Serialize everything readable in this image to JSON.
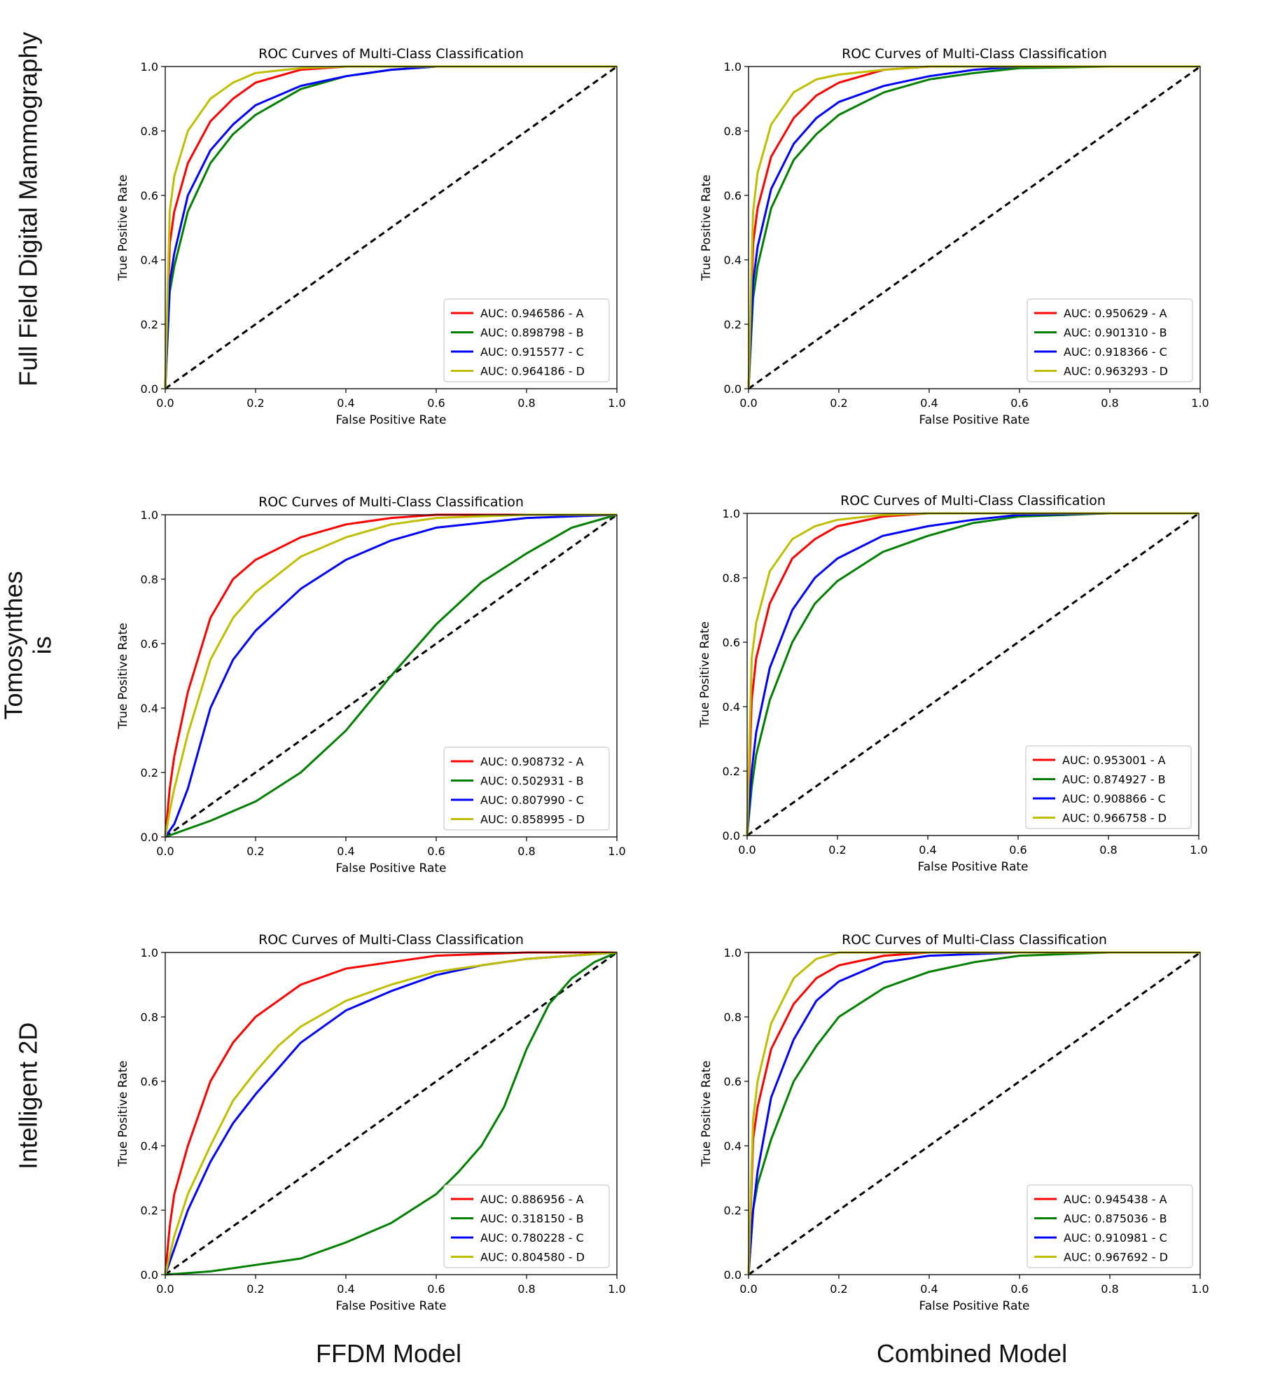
{
  "row_labels": [
    "Full Field Digital Mammography",
    "Tomosynthes is",
    "Intelligent 2D"
  ],
  "col_labels": [
    "FFDM Model",
    "Combined Model"
  ],
  "colors": {
    "A": "#ff0000",
    "B": "#008000",
    "C": "#0000ff",
    "D": "#bfbf00",
    "diag": "#000000"
  },
  "chart_data": [
    {
      "type": "line",
      "row": "Full Field Digital Mammography",
      "column": "FFDM Model",
      "title": "ROC Curves of Multi-Class Classification",
      "xlabel": "False Positive Rate",
      "ylabel": "True Positive Rate",
      "xlim": [
        0,
        1
      ],
      "ylim": [
        0,
        1
      ],
      "xticks": [
        "0.0",
        "0.2",
        "0.4",
        "0.6",
        "0.8",
        "1.0"
      ],
      "yticks": [
        "0.0",
        "0.2",
        "0.4",
        "0.6",
        "0.8",
        "1.0"
      ],
      "grid": false,
      "legend_position": "lower-right",
      "series": [
        {
          "name": "AUC: 0.946586 - A",
          "x": [
            0,
            0.01,
            0.02,
            0.05,
            0.1,
            0.15,
            0.2,
            0.3,
            0.4,
            0.6,
            1.0
          ],
          "y": [
            0,
            0.45,
            0.55,
            0.7,
            0.83,
            0.9,
            0.95,
            0.99,
            1.0,
            1.0,
            1.0
          ]
        },
        {
          "name": "AUC: 0.898798 - B",
          "x": [
            0,
            0.01,
            0.02,
            0.05,
            0.1,
            0.15,
            0.2,
            0.3,
            0.4,
            0.5,
            0.6,
            0.8,
            1.0
          ],
          "y": [
            0,
            0.3,
            0.38,
            0.55,
            0.7,
            0.79,
            0.85,
            0.93,
            0.97,
            0.99,
            1.0,
            1.0,
            1.0
          ]
        },
        {
          "name": "AUC: 0.915577 - C",
          "x": [
            0,
            0.01,
            0.02,
            0.05,
            0.1,
            0.15,
            0.2,
            0.3,
            0.4,
            0.5,
            0.6,
            0.8,
            1.0
          ],
          "y": [
            0,
            0.33,
            0.42,
            0.6,
            0.74,
            0.82,
            0.88,
            0.94,
            0.97,
            0.99,
            1.0,
            1.0,
            1.0
          ]
        },
        {
          "name": "AUC: 0.964186 - D",
          "x": [
            0,
            0.01,
            0.02,
            0.05,
            0.1,
            0.15,
            0.2,
            0.3,
            0.4,
            1.0
          ],
          "y": [
            0,
            0.55,
            0.66,
            0.8,
            0.9,
            0.95,
            0.98,
            0.995,
            1.0,
            1.0
          ]
        }
      ]
    },
    {
      "type": "line",
      "row": "Full Field Digital Mammography",
      "column": "Combined Model",
      "title": "ROC Curves of Multi-Class Classification",
      "xlabel": "False Positive Rate",
      "ylabel": "True Positive Rate",
      "xlim": [
        0,
        1
      ],
      "ylim": [
        0,
        1
      ],
      "xticks": [
        "0.0",
        "0.2",
        "0.4",
        "0.6",
        "0.8",
        "1.0"
      ],
      "yticks": [
        "0.0",
        "0.2",
        "0.4",
        "0.6",
        "0.8",
        "1.0"
      ],
      "grid": false,
      "legend_position": "lower-right",
      "series": [
        {
          "name": "AUC: 0.950629 - A",
          "x": [
            0,
            0.01,
            0.02,
            0.05,
            0.1,
            0.15,
            0.2,
            0.3,
            0.4,
            0.6,
            1.0
          ],
          "y": [
            0,
            0.45,
            0.56,
            0.72,
            0.84,
            0.91,
            0.95,
            0.99,
            1.0,
            1.0,
            1.0
          ]
        },
        {
          "name": "AUC: 0.901310 - B",
          "x": [
            0,
            0.01,
            0.02,
            0.05,
            0.1,
            0.15,
            0.2,
            0.3,
            0.4,
            0.5,
            0.6,
            0.8,
            1.0
          ],
          "y": [
            0,
            0.28,
            0.38,
            0.56,
            0.71,
            0.79,
            0.85,
            0.92,
            0.96,
            0.98,
            0.995,
            1.0,
            1.0
          ]
        },
        {
          "name": "AUC: 0.918366 - C",
          "x": [
            0,
            0.01,
            0.02,
            0.05,
            0.1,
            0.15,
            0.2,
            0.3,
            0.4,
            0.5,
            0.6,
            0.8,
            1.0
          ],
          "y": [
            0,
            0.33,
            0.44,
            0.62,
            0.76,
            0.84,
            0.89,
            0.94,
            0.97,
            0.99,
            1.0,
            1.0,
            1.0
          ]
        },
        {
          "name": "AUC: 0.963293 - D",
          "x": [
            0,
            0.01,
            0.02,
            0.05,
            0.1,
            0.15,
            0.2,
            0.3,
            0.4,
            1.0
          ],
          "y": [
            0,
            0.55,
            0.67,
            0.82,
            0.92,
            0.96,
            0.975,
            0.99,
            1.0,
            1.0
          ]
        }
      ]
    },
    {
      "type": "line",
      "row": "Tomosynthes is",
      "column": "FFDM Model",
      "title": "ROC Curves of Multi-Class Classification",
      "xlabel": "False Positive Rate",
      "ylabel": "True Positive Rate",
      "xlim": [
        0,
        1
      ],
      "ylim": [
        0,
        1
      ],
      "xticks": [
        "0.0",
        "0.2",
        "0.4",
        "0.6",
        "0.8",
        "1.0"
      ],
      "yticks": [
        "0.0",
        "0.2",
        "0.4",
        "0.6",
        "0.8",
        "1.0"
      ],
      "grid": false,
      "legend_position": "lower-right",
      "series": [
        {
          "name": "AUC: 0.908732 - A",
          "x": [
            0,
            0.01,
            0.02,
            0.05,
            0.1,
            0.15,
            0.2,
            0.3,
            0.4,
            0.5,
            0.6,
            1.0
          ],
          "y": [
            0,
            0.15,
            0.25,
            0.45,
            0.68,
            0.8,
            0.86,
            0.93,
            0.97,
            0.99,
            1.0,
            1.0
          ]
        },
        {
          "name": "AUC: 0.502931 - B",
          "x": [
            0,
            0.1,
            0.2,
            0.3,
            0.4,
            0.5,
            0.6,
            0.7,
            0.8,
            0.9,
            1.0
          ],
          "y": [
            0,
            0.05,
            0.11,
            0.2,
            0.33,
            0.5,
            0.66,
            0.79,
            0.88,
            0.96,
            1.0
          ]
        },
        {
          "name": "AUC: 0.807990 - C",
          "x": [
            0,
            0.02,
            0.05,
            0.08,
            0.1,
            0.15,
            0.2,
            0.3,
            0.4,
            0.5,
            0.6,
            0.8,
            1.0
          ],
          "y": [
            0,
            0.04,
            0.15,
            0.3,
            0.4,
            0.55,
            0.64,
            0.77,
            0.86,
            0.92,
            0.96,
            0.99,
            1.0
          ]
        },
        {
          "name": "AUC: 0.858995 - D",
          "x": [
            0,
            0.01,
            0.02,
            0.05,
            0.1,
            0.15,
            0.2,
            0.3,
            0.4,
            0.5,
            0.6,
            0.8,
            1.0
          ],
          "y": [
            0,
            0.08,
            0.15,
            0.32,
            0.55,
            0.68,
            0.76,
            0.87,
            0.93,
            0.97,
            0.99,
            1.0,
            1.0
          ]
        }
      ]
    },
    {
      "type": "line",
      "row": "Tomosynthes is",
      "column": "Combined Model",
      "title": "ROC Curves of Multi-Class Classification",
      "xlabel": "False Positive Rate",
      "ylabel": "True Positive Rate",
      "xlim": [
        0,
        1
      ],
      "ylim": [
        0,
        1
      ],
      "xticks": [
        "0.0",
        "0.2",
        "0.4",
        "0.6",
        "0.8",
        "1.0"
      ],
      "yticks": [
        "0.0",
        "0.2",
        "0.4",
        "0.6",
        "0.8",
        "1.0"
      ],
      "grid": false,
      "legend_position": "lower-right",
      "series": [
        {
          "name": "AUC: 0.953001 - A",
          "x": [
            0,
            0.01,
            0.02,
            0.05,
            0.1,
            0.15,
            0.2,
            0.3,
            0.4,
            0.6,
            1.0
          ],
          "y": [
            0,
            0.42,
            0.55,
            0.72,
            0.86,
            0.92,
            0.96,
            0.99,
            1.0,
            1.0,
            1.0
          ]
        },
        {
          "name": "AUC: 0.874927 - B",
          "x": [
            0,
            0.01,
            0.02,
            0.05,
            0.1,
            0.15,
            0.2,
            0.3,
            0.4,
            0.5,
            0.6,
            0.8,
            1.0
          ],
          "y": [
            0,
            0.15,
            0.25,
            0.42,
            0.6,
            0.72,
            0.79,
            0.88,
            0.93,
            0.97,
            0.99,
            1.0,
            1.0
          ]
        },
        {
          "name": "AUC: 0.908866 - C",
          "x": [
            0,
            0.01,
            0.02,
            0.05,
            0.1,
            0.15,
            0.2,
            0.3,
            0.4,
            0.5,
            0.6,
            0.8,
            1.0
          ],
          "y": [
            0,
            0.2,
            0.32,
            0.52,
            0.7,
            0.8,
            0.86,
            0.93,
            0.96,
            0.98,
            0.995,
            1.0,
            1.0
          ]
        },
        {
          "name": "AUC: 0.966758 - D",
          "x": [
            0,
            0.01,
            0.02,
            0.05,
            0.1,
            0.15,
            0.2,
            0.3,
            0.4,
            1.0
          ],
          "y": [
            0,
            0.55,
            0.66,
            0.82,
            0.92,
            0.96,
            0.98,
            0.995,
            1.0,
            1.0
          ]
        }
      ]
    },
    {
      "type": "line",
      "row": "Intelligent 2D",
      "column": "FFDM Model",
      "title": "ROC Curves of Multi-Class Classification",
      "xlabel": "False Positive Rate",
      "ylabel": "True Positive Rate",
      "xlim": [
        0,
        1
      ],
      "ylim": [
        0,
        1
      ],
      "xticks": [
        "0.0",
        "0.2",
        "0.4",
        "0.6",
        "0.8",
        "1.0"
      ],
      "yticks": [
        "0.0",
        "0.2",
        "0.4",
        "0.6",
        "0.8",
        "1.0"
      ],
      "grid": false,
      "legend_position": "lower-right",
      "series": [
        {
          "name": "AUC: 0.886956 - A",
          "x": [
            0,
            0.01,
            0.02,
            0.05,
            0.1,
            0.15,
            0.2,
            0.3,
            0.4,
            0.5,
            0.6,
            0.8,
            1.0
          ],
          "y": [
            0,
            0.15,
            0.25,
            0.4,
            0.6,
            0.72,
            0.8,
            0.9,
            0.95,
            0.97,
            0.99,
            1.0,
            1.0
          ]
        },
        {
          "name": "AUC: 0.318150 - B",
          "x": [
            0,
            0.1,
            0.2,
            0.3,
            0.4,
            0.5,
            0.6,
            0.65,
            0.7,
            0.75,
            0.8,
            0.85,
            0.9,
            0.95,
            1.0
          ],
          "y": [
            0,
            0.01,
            0.03,
            0.05,
            0.1,
            0.16,
            0.25,
            0.32,
            0.4,
            0.52,
            0.7,
            0.84,
            0.92,
            0.97,
            1.0
          ]
        },
        {
          "name": "AUC: 0.780228 - C",
          "x": [
            0,
            0.02,
            0.05,
            0.1,
            0.15,
            0.2,
            0.25,
            0.3,
            0.4,
            0.5,
            0.6,
            0.7,
            0.8,
            1.0
          ],
          "y": [
            0,
            0.08,
            0.2,
            0.35,
            0.47,
            0.56,
            0.64,
            0.72,
            0.82,
            0.88,
            0.93,
            0.96,
            0.98,
            1.0
          ]
        },
        {
          "name": "AUC: 0.804580 - D",
          "x": [
            0,
            0.02,
            0.05,
            0.1,
            0.15,
            0.2,
            0.25,
            0.3,
            0.4,
            0.5,
            0.6,
            0.7,
            0.8,
            1.0
          ],
          "y": [
            0,
            0.12,
            0.25,
            0.4,
            0.54,
            0.63,
            0.71,
            0.77,
            0.85,
            0.9,
            0.94,
            0.96,
            0.98,
            1.0
          ]
        }
      ]
    },
    {
      "type": "line",
      "row": "Intelligent 2D",
      "column": "Combined Model",
      "title": "ROC Curves of Multi-Class Classification",
      "xlabel": "False Positive Rate",
      "ylabel": "True Positive Rate",
      "xlim": [
        0,
        1
      ],
      "ylim": [
        0,
        1
      ],
      "xticks": [
        "0.0",
        "0.2",
        "0.4",
        "0.6",
        "0.8",
        "1.0"
      ],
      "yticks": [
        "0.0",
        "0.2",
        "0.4",
        "0.6",
        "0.8",
        "1.0"
      ],
      "grid": false,
      "legend_position": "lower-right",
      "series": [
        {
          "name": "AUC: 0.945438 - A",
          "x": [
            0,
            0.01,
            0.02,
            0.05,
            0.1,
            0.15,
            0.2,
            0.3,
            0.4,
            0.6,
            1.0
          ],
          "y": [
            0,
            0.42,
            0.52,
            0.7,
            0.84,
            0.92,
            0.96,
            0.99,
            1.0,
            1.0,
            1.0
          ]
        },
        {
          "name": "AUC: 0.875036 - B",
          "x": [
            0,
            0.01,
            0.02,
            0.05,
            0.1,
            0.15,
            0.2,
            0.3,
            0.4,
            0.5,
            0.6,
            0.8,
            1.0
          ],
          "y": [
            0,
            0.2,
            0.28,
            0.42,
            0.6,
            0.71,
            0.8,
            0.89,
            0.94,
            0.97,
            0.99,
            1.0,
            1.0
          ]
        },
        {
          "name": "AUC: 0.910981 - C",
          "x": [
            0,
            0.01,
            0.02,
            0.05,
            0.1,
            0.15,
            0.2,
            0.3,
            0.4,
            0.5,
            0.6,
            1.0
          ],
          "y": [
            0,
            0.2,
            0.32,
            0.55,
            0.73,
            0.85,
            0.91,
            0.97,
            0.99,
            0.995,
            1.0,
            1.0
          ]
        },
        {
          "name": "AUC: 0.967692 - D",
          "x": [
            0,
            0.01,
            0.02,
            0.05,
            0.1,
            0.15,
            0.2,
            0.4,
            1.0
          ],
          "y": [
            0,
            0.48,
            0.6,
            0.78,
            0.92,
            0.98,
            1.0,
            1.0,
            1.0
          ]
        }
      ]
    }
  ]
}
